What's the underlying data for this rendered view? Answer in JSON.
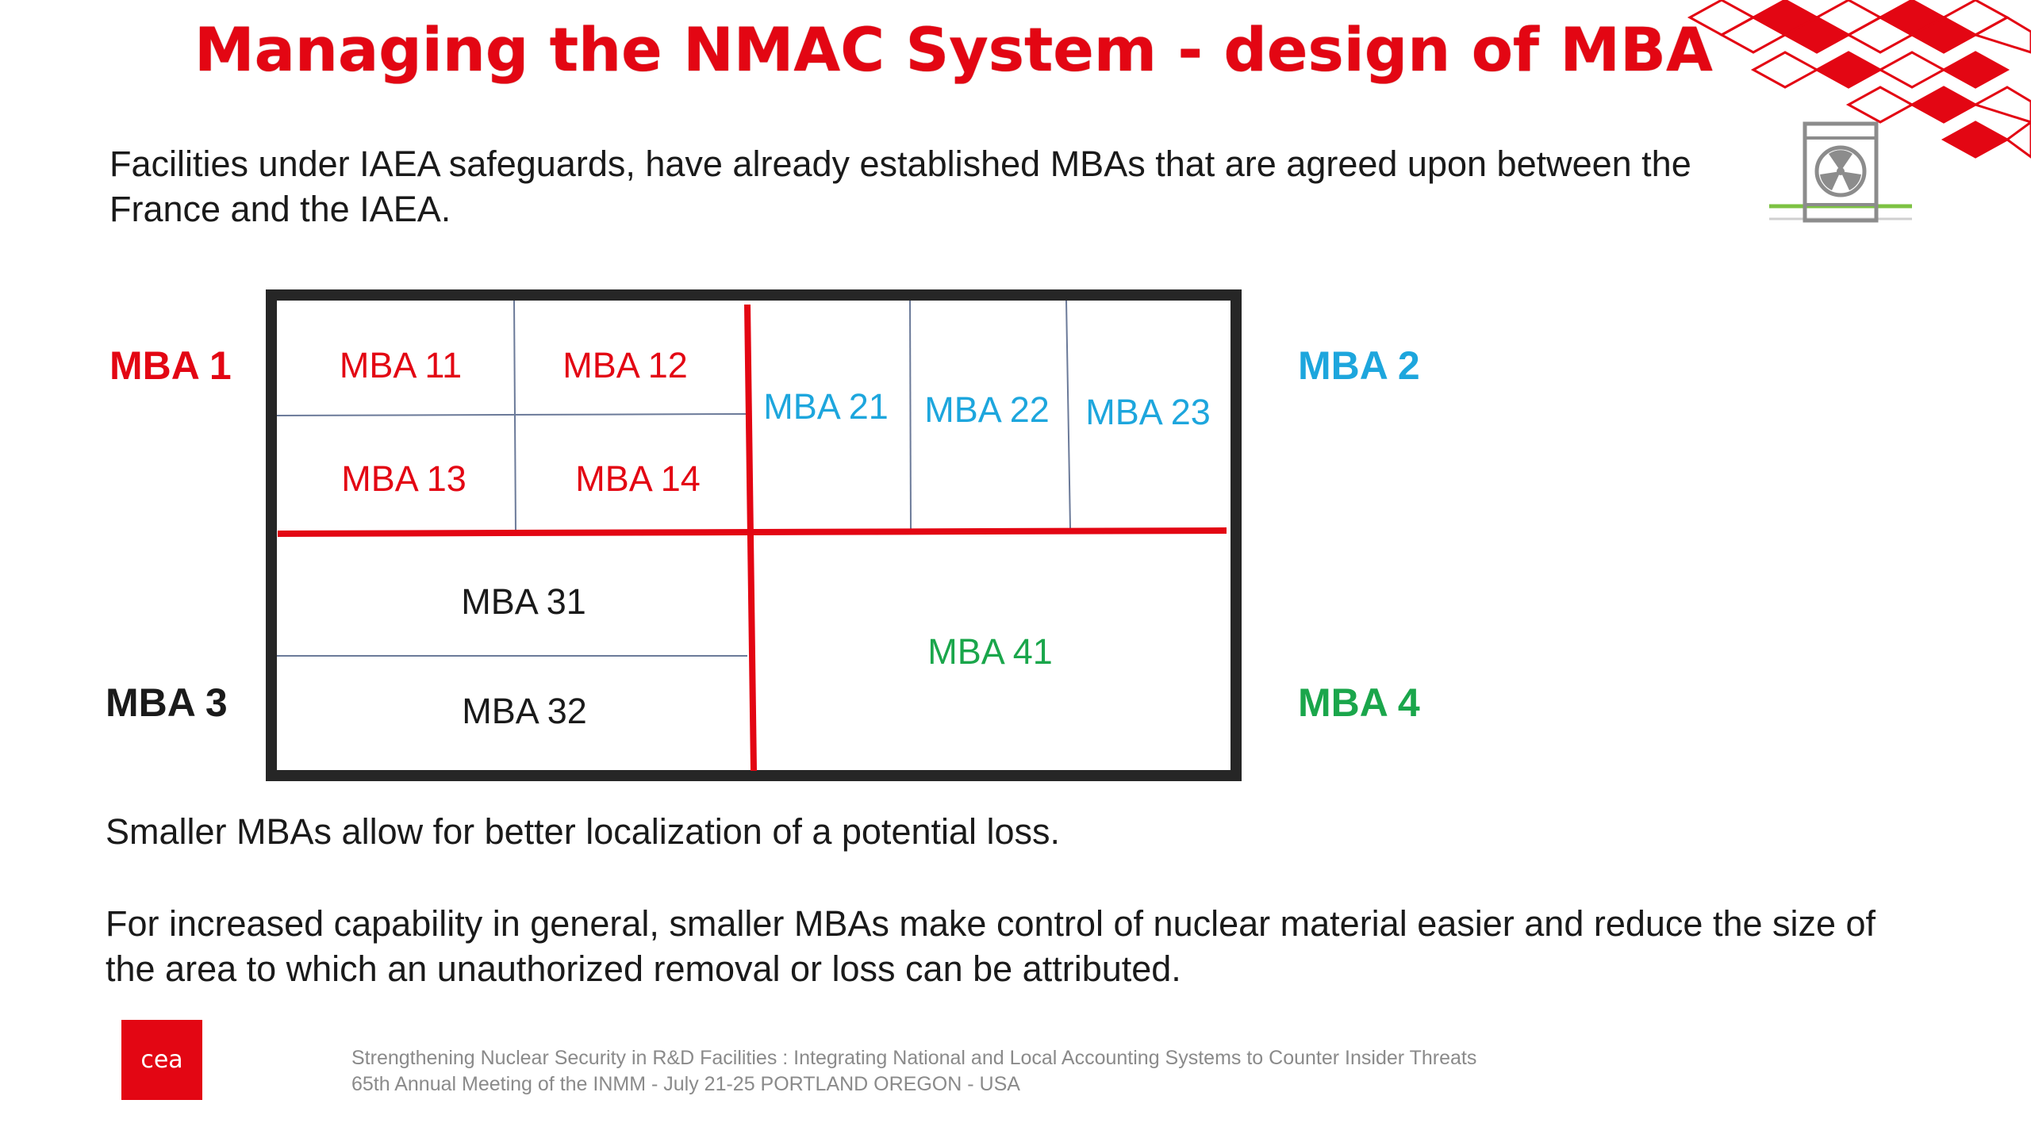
{
  "title": "Managing the NMAC System - design of MBA",
  "intro": "Facilities under IAEA safeguards, have already established MBAs that are agreed upon between the France and the IAEA.",
  "colors": {
    "red": "#e30613",
    "blue": "#1da6dd",
    "green": "#1aa64b",
    "dark": "#1a1a1a"
  },
  "diagram": {
    "groups": {
      "mba1": "MBA 1",
      "mba2": "MBA 2",
      "mba3": "MBA 3",
      "mba4": "MBA 4"
    },
    "cells": {
      "mba11": "MBA 11",
      "mba12": "MBA 12",
      "mba13": "MBA 13",
      "mba14": "MBA 14",
      "mba21": "MBA 21",
      "mba22": "MBA 22",
      "mba23": "MBA 23",
      "mba31": "MBA 31",
      "mba32": "MBA 32",
      "mba41": "MBA 41"
    }
  },
  "paragraph1": "Smaller MBAs allow for better localization of a potential loss.",
  "paragraph2": "For increased capability in general, smaller MBAs make control of nuclear material easier and reduce the size of the area to which an unauthorized removal or loss can be attributed.",
  "logo_text": "cea",
  "footer": {
    "line1": "Strengthening Nuclear Security in R&D Facilities : Integrating National and Local Accounting Systems to Counter Insider Threats",
    "line2": "65th Annual Meeting of the INMM - July 21-25 PORTLAND OREGON - USA"
  },
  "icons": {
    "building": "radioactive-facility-icon",
    "decoration": "red-cube-pattern"
  }
}
